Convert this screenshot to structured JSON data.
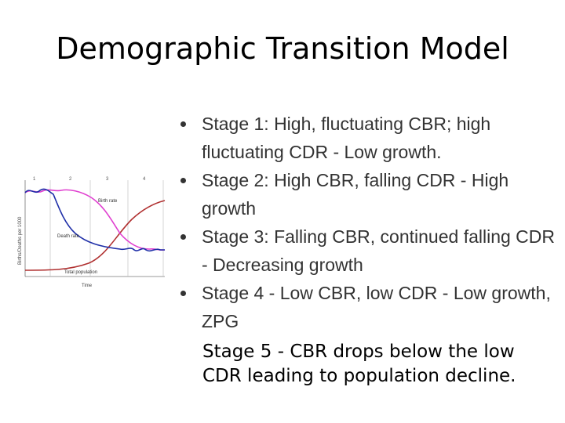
{
  "title": "Demographic Transition Model",
  "diagram": {
    "stage_numbers": [
      "1",
      "2",
      "3",
      "4"
    ],
    "y_axis_label": "Births/Deaths per 1000",
    "x_axis_label": "Time",
    "labels": {
      "birth": "Birth rate",
      "death": "Death rate",
      "population": "Total population"
    },
    "colors": {
      "birth": "#e040d0",
      "death": "#1f2fa8",
      "population": "#b03030"
    }
  },
  "bullets": [
    "Stage 1: High, fluctuating CBR; high fluctuating CDR - Low growth.",
    "Stage 2: High CBR, falling CDR - High growth",
    "Stage 3: Falling CBR, continued falling CDR - Decreasing growth",
    "Stage 4 - Low CBR, low CDR - Low growth, ZPG"
  ],
  "stage5": "Stage 5 - CBR drops below the low CDR leading to population decline."
}
